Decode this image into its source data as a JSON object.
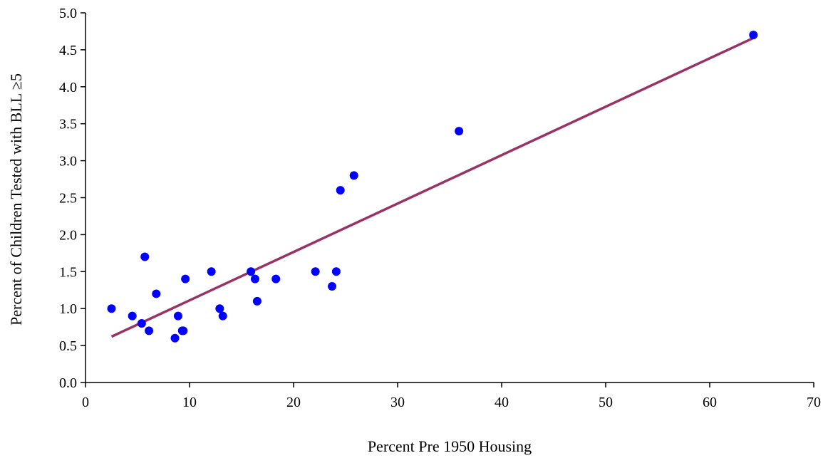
{
  "chart_data": {
    "type": "scatter",
    "title": "",
    "xlabel": "Percent Pre 1950 Housing",
    "ylabel": "Percent of Children Tested with BLL ≥5",
    "xlim": [
      0,
      70
    ],
    "ylim": [
      0,
      5.0
    ],
    "x_ticks": [
      "0",
      "10",
      "20",
      "30",
      "40",
      "50",
      "60",
      "70"
    ],
    "y_ticks": [
      "0.0",
      "0.5",
      "1.0",
      "1.5",
      "2.0",
      "2.5",
      "3.0",
      "3.5",
      "4.0",
      "4.5",
      "5.0"
    ],
    "grid": false,
    "legend": "none",
    "points": [
      {
        "x": 2.5,
        "y": 1.0
      },
      {
        "x": 4.5,
        "y": 0.9
      },
      {
        "x": 5.4,
        "y": 0.8
      },
      {
        "x": 5.7,
        "y": 1.7
      },
      {
        "x": 6.1,
        "y": 0.7
      },
      {
        "x": 6.8,
        "y": 1.2
      },
      {
        "x": 8.6,
        "y": 0.6
      },
      {
        "x": 8.9,
        "y": 0.9
      },
      {
        "x": 9.3,
        "y": 0.7
      },
      {
        "x": 9.4,
        "y": 0.7
      },
      {
        "x": 9.6,
        "y": 1.4
      },
      {
        "x": 12.1,
        "y": 1.5
      },
      {
        "x": 12.9,
        "y": 1.0
      },
      {
        "x": 13.2,
        "y": 0.9
      },
      {
        "x": 15.9,
        "y": 1.5
      },
      {
        "x": 16.3,
        "y": 1.4
      },
      {
        "x": 16.5,
        "y": 1.1
      },
      {
        "x": 18.3,
        "y": 1.4
      },
      {
        "x": 22.1,
        "y": 1.5
      },
      {
        "x": 23.7,
        "y": 1.3
      },
      {
        "x": 24.1,
        "y": 1.5
      },
      {
        "x": 24.5,
        "y": 2.6
      },
      {
        "x": 25.8,
        "y": 2.8
      },
      {
        "x": 35.9,
        "y": 3.4
      },
      {
        "x": 64.2,
        "y": 4.7
      }
    ],
    "trendline": {
      "x1": 2.5,
      "y1": 0.62,
      "x2": 64.2,
      "y2": 4.66
    },
    "colors": {
      "points": "#0000ff",
      "trendline": "#993366",
      "axes": "#000000"
    }
  }
}
